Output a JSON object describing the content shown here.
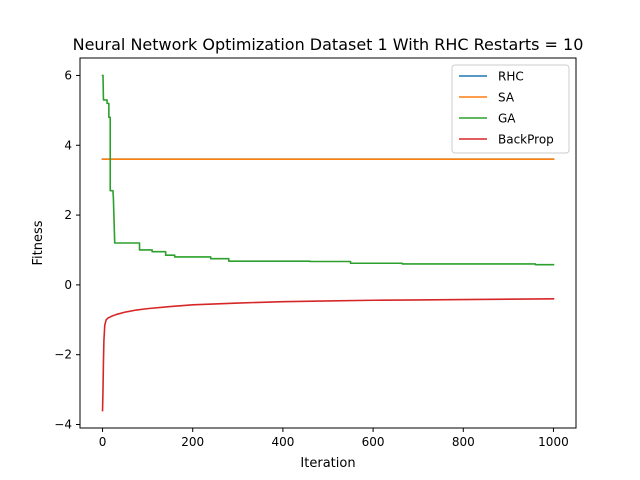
{
  "chart_data": {
    "type": "line",
    "title": "Neural Network Optimization Dataset 1 With RHC Restarts = 10",
    "xlabel": "Iteration",
    "ylabel": "Fitness",
    "xlim": [
      -50,
      1050
    ],
    "ylim": [
      -4.1,
      6.5
    ],
    "xticks": [
      0,
      200,
      400,
      600,
      800,
      1000
    ],
    "yticks": [
      -4,
      -2,
      0,
      2,
      4,
      6
    ],
    "xtick_labels": [
      "0",
      "200",
      "400",
      "600",
      "800",
      "1000"
    ],
    "ytick_labels": [
      "−4",
      "−2",
      "0",
      "2",
      "4",
      "6"
    ],
    "grid": false,
    "legend_position": "top-right",
    "series": [
      {
        "name": "RHC",
        "color": "#1f77b4",
        "points": [
          [
            0,
            3.6
          ],
          [
            1000,
            3.6
          ]
        ]
      },
      {
        "name": "SA",
        "color": "#ff7f0e",
        "points": [
          [
            0,
            3.6
          ],
          [
            1000,
            3.6
          ]
        ]
      },
      {
        "name": "GA",
        "color": "#2ca02c",
        "points": [
          [
            0,
            6.0
          ],
          [
            1,
            6.0
          ],
          [
            2,
            5.3
          ],
          [
            10,
            5.3
          ],
          [
            10,
            5.2
          ],
          [
            14,
            5.2
          ],
          [
            14,
            4.8
          ],
          [
            17,
            4.8
          ],
          [
            17,
            2.7
          ],
          [
            23,
            2.7
          ],
          [
            24,
            2.5
          ],
          [
            27,
            1.2
          ],
          [
            82,
            1.2
          ],
          [
            82,
            1.0
          ],
          [
            110,
            1.0
          ],
          [
            110,
            0.95
          ],
          [
            140,
            0.95
          ],
          [
            140,
            0.85
          ],
          [
            160,
            0.85
          ],
          [
            160,
            0.8
          ],
          [
            240,
            0.8
          ],
          [
            240,
            0.75
          ],
          [
            280,
            0.75
          ],
          [
            280,
            0.68
          ],
          [
            460,
            0.68
          ],
          [
            460,
            0.67
          ],
          [
            550,
            0.67
          ],
          [
            550,
            0.62
          ],
          [
            665,
            0.62
          ],
          [
            665,
            0.6
          ],
          [
            960,
            0.6
          ],
          [
            960,
            0.58
          ],
          [
            1000,
            0.58
          ]
        ]
      },
      {
        "name": "BackProp",
        "color": "#d62728",
        "points": [
          [
            0,
            -3.6
          ],
          [
            1,
            -3.0
          ],
          [
            2,
            -2.2
          ],
          [
            3,
            -1.6
          ],
          [
            5,
            -1.15
          ],
          [
            8,
            -1.0
          ],
          [
            12,
            -0.95
          ],
          [
            20,
            -0.9
          ],
          [
            30,
            -0.85
          ],
          [
            50,
            -0.78
          ],
          [
            75,
            -0.72
          ],
          [
            100,
            -0.68
          ],
          [
            150,
            -0.62
          ],
          [
            200,
            -0.57
          ],
          [
            300,
            -0.52
          ],
          [
            400,
            -0.48
          ],
          [
            500,
            -0.46
          ],
          [
            600,
            -0.44
          ],
          [
            700,
            -0.43
          ],
          [
            800,
            -0.42
          ],
          [
            900,
            -0.41
          ],
          [
            1000,
            -0.4
          ]
        ]
      }
    ]
  }
}
